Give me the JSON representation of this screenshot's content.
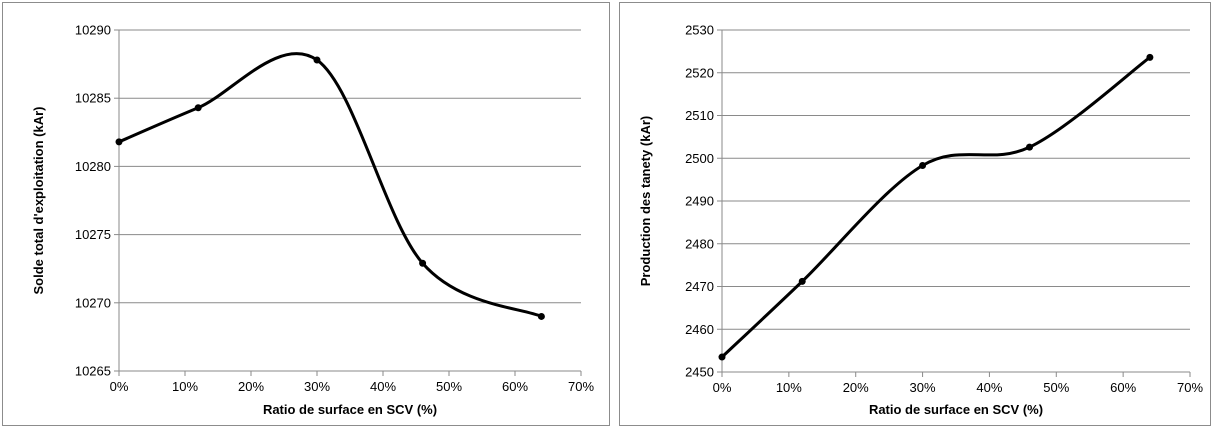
{
  "chart_data": [
    {
      "type": "line",
      "smooth": true,
      "title": "",
      "xlabel": "Ratio de surface en SCV (%)",
      "ylabel": "Solde total d'exploitation (kAr)",
      "x": [
        0,
        12,
        30,
        46,
        64
      ],
      "values": [
        10281.8,
        10284.3,
        10287.8,
        10272.9,
        10269.0
      ],
      "xlim": [
        0,
        70
      ],
      "ylim": [
        10265,
        10290
      ],
      "xticks": [
        0,
        10,
        20,
        30,
        40,
        50,
        60,
        70
      ],
      "xtick_labels": [
        "0%",
        "10%",
        "20%",
        "30%",
        "40%",
        "50%",
        "60%",
        "70%"
      ],
      "yticks": [
        10265,
        10270,
        10275,
        10280,
        10285,
        10290
      ],
      "ytick_labels": [
        "10265",
        "10270",
        "10275",
        "10280",
        "10285",
        "10290"
      ],
      "grid": "horizontal",
      "legend": "none",
      "line_color": "#000000"
    },
    {
      "type": "line",
      "smooth": true,
      "title": "",
      "xlabel": "Ratio de surface en SCV (%)",
      "ylabel": "Production des tanety (kAr)",
      "x": [
        0,
        12,
        30,
        46,
        64
      ],
      "values": [
        2453.5,
        2471.2,
        2498.3,
        2502.6,
        2523.6
      ],
      "xlim": [
        0,
        70
      ],
      "ylim": [
        2450,
        2530
      ],
      "xticks": [
        0,
        10,
        20,
        30,
        40,
        50,
        60,
        70
      ],
      "xtick_labels": [
        "0%",
        "10%",
        "20%",
        "30%",
        "40%",
        "50%",
        "60%",
        "70%"
      ],
      "yticks": [
        2450,
        2460,
        2470,
        2480,
        2490,
        2500,
        2510,
        2520,
        2530
      ],
      "ytick_labels": [
        "2450",
        "2460",
        "2470",
        "2480",
        "2490",
        "2500",
        "2510",
        "2520",
        "2530"
      ],
      "grid": "horizontal",
      "legend": "none",
      "line_color": "#000000"
    }
  ]
}
